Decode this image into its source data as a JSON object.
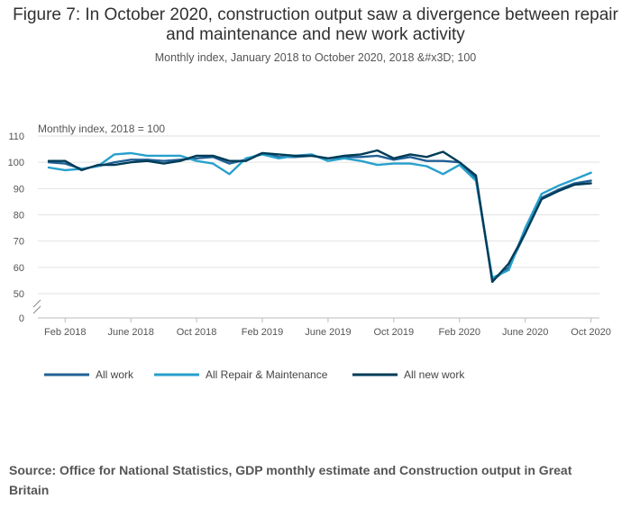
{
  "title": "Figure 7: In October 2020, construction output saw a divergence between repair and maintenance and new work activity",
  "subtitle": "Monthly index, January 2018 to October 2020, 2018 &#x3D; 100",
  "source": "Source: Office for National Statistics, GDP monthly estimate and Construction output in Great Britain",
  "chart_data": {
    "type": "line",
    "ylabel": "Monthly index, 2018 = 100",
    "yticks": [
      0,
      50,
      60,
      70,
      80,
      90,
      100,
      110
    ],
    "ylim": [
      50,
      110
    ],
    "axis_break": true,
    "grid": true,
    "legend_position": "bottom",
    "x": [
      "Jan 2018",
      "Feb 2018",
      "Mar 2018",
      "Apr 2018",
      "May 2018",
      "Jun 2018",
      "Jul 2018",
      "Aug 2018",
      "Sep 2018",
      "Oct 2018",
      "Nov 2018",
      "Dec 2018",
      "Jan 2019",
      "Feb 2019",
      "Mar 2019",
      "Apr 2019",
      "May 2019",
      "Jun 2019",
      "Jul 2019",
      "Aug 2019",
      "Sep 2019",
      "Oct 2019",
      "Nov 2019",
      "Dec 2019",
      "Jan 2020",
      "Feb 2020",
      "Mar 2020",
      "Apr 2020",
      "May 2020",
      "Jun 2020",
      "Jul 2020",
      "Aug 2020",
      "Sep 2020",
      "Oct 2020"
    ],
    "xtick_labels": [
      "Feb 2018",
      "June 2018",
      "Oct 2018",
      "Feb 2019",
      "June 2019",
      "Oct 2019",
      "Feb 2020",
      "June 2020",
      "Oct 2020"
    ],
    "series": [
      {
        "name": "All work",
        "color": "#206095",
        "values": [
          100.0,
          99.5,
          97.5,
          98.5,
          100.0,
          101.0,
          101.0,
          100.5,
          101.0,
          101.5,
          102.0,
          99.5,
          101.0,
          103.5,
          102.0,
          102.0,
          102.5,
          101.5,
          102.0,
          102.0,
          102.5,
          101.0,
          102.0,
          100.5,
          100.5,
          100.0,
          94.0,
          55.0,
          60.0,
          73.0,
          86.5,
          89.5,
          92.0,
          93.0
        ]
      },
      {
        "name": "All Repair & Maintenance",
        "color": "#27a0cc",
        "values": [
          98.0,
          97.0,
          97.5,
          98.5,
          103.0,
          103.5,
          102.5,
          102.5,
          102.5,
          100.5,
          99.5,
          95.5,
          101.5,
          103.0,
          101.5,
          102.5,
          103.0,
          100.5,
          101.5,
          100.5,
          99.0,
          99.5,
          99.5,
          98.5,
          95.5,
          99.0,
          93.0,
          56.0,
          59.0,
          75.0,
          88.0,
          91.0,
          93.5,
          96.0
        ]
      },
      {
        "name": "All new work",
        "color": "#003c57",
        "values": [
          100.5,
          100.5,
          97.0,
          99.0,
          99.0,
          100.0,
          100.5,
          99.5,
          100.5,
          102.5,
          102.5,
          100.5,
          100.5,
          103.5,
          103.0,
          102.5,
          102.5,
          101.5,
          102.5,
          103.0,
          104.5,
          101.5,
          103.0,
          102.0,
          104.0,
          100.0,
          95.0,
          54.5,
          61.5,
          73.0,
          86.0,
          89.0,
          91.5,
          92.0
        ]
      }
    ]
  }
}
